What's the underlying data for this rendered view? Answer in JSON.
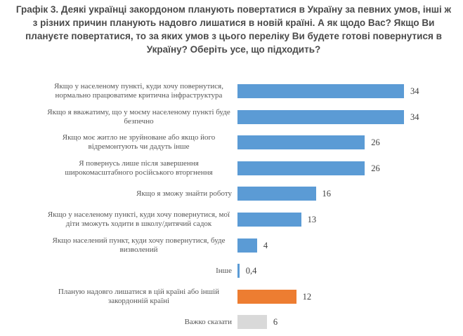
{
  "chart_data": {
    "type": "bar",
    "orientation": "horizontal",
    "title": "Графік 3. Деякі українці закордоном планують повертатися в Україну за певних умов, інші ж з різних причин планують надовго лишатися в новій країні. А як щодо Вас? Якщо Ви плануєте повертатися, то за яких умов з цього переліку Ви будете готові повернутися в Україну? Оберіть усе, що підходить?",
    "categories": [
      "Якщо у населеному пункті, куди хочу повернутися, нормально працюватиме критична інфраструктура",
      "Якщо я вважатиму, що у моєму населеному пункті буде безпечно",
      "Якщо моє житло не зруйноване або якщо його відремонтують чи дадуть інше",
      "Я повернусь лише після завершення широкомасштабного російського вторгнення",
      "Якщо я зможу знайти роботу",
      "Якщо у населеному пункті, куди хочу повернутися, мої діти зможуть ходити в школу/дитячий садок",
      "Якщо населений пункт, куди хочу повернутися, буде визволений",
      "Інше",
      "Планую надовго лишатися в цій країні або іншій закордонній країні",
      "Важко сказати"
    ],
    "values": [
      34,
      34,
      26,
      26,
      16,
      13,
      4,
      0.4,
      12,
      6
    ],
    "value_labels": [
      "34",
      "34",
      "26",
      "26",
      "16",
      "13",
      "4",
      "0,4",
      "12",
      "6"
    ],
    "colors": [
      "#5b9bd5",
      "#5b9bd5",
      "#5b9bd5",
      "#5b9bd5",
      "#5b9bd5",
      "#5b9bd5",
      "#5b9bd5",
      "#5b9bd5",
      "#ed7d31",
      "#d9d9d9"
    ]
  }
}
